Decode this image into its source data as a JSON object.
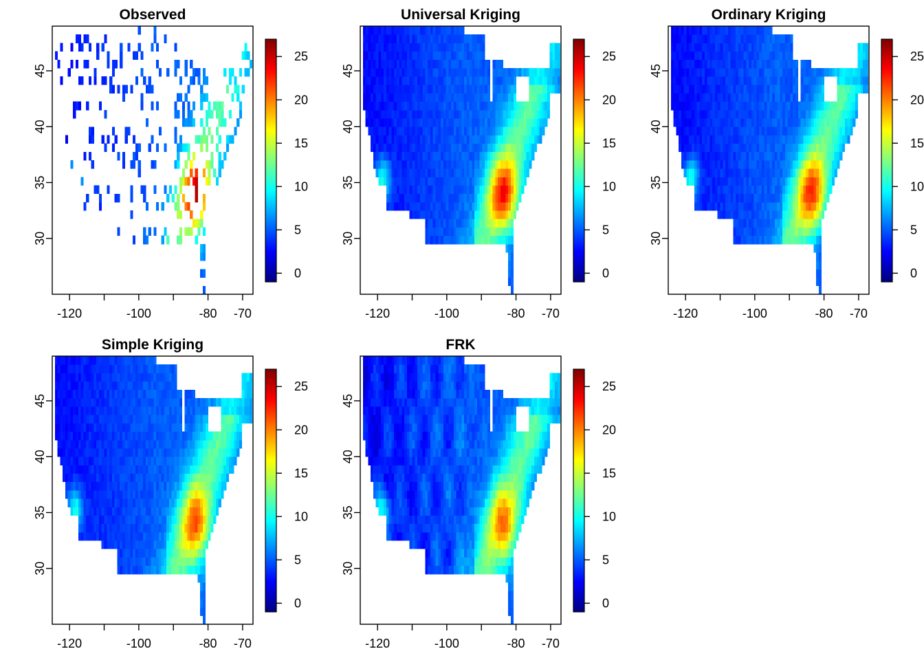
{
  "chart_data": [
    {
      "type": "heatmap",
      "title": "Observed",
      "xlabel": "",
      "ylabel": "",
      "x_ticks": [
        -120,
        -100,
        -80,
        -70
      ],
      "y_ticks": [
        30,
        35,
        40,
        45
      ],
      "xlim": [
        -125,
        -67
      ],
      "ylim": [
        25,
        49
      ],
      "colorbar_ticks": [
        0,
        5,
        10,
        15,
        20,
        25
      ],
      "colorbar_range": [
        -1,
        27
      ],
      "field": "sparse observed station values over the contiguous United States; mostly 2–8 in the west and north, 8–16 in the east, peaking near 22–25 around (-84, 34)",
      "hotspot": {
        "lon": -83.5,
        "lat": 34.0,
        "value": 24
      }
    },
    {
      "type": "heatmap",
      "title": "Universal Kriging",
      "xlabel": "",
      "ylabel": "",
      "x_ticks": [
        -120,
        -100,
        -80,
        -70
      ],
      "y_ticks": [
        30,
        35,
        40,
        45
      ],
      "xlim": [
        -125,
        -67
      ],
      "ylim": [
        25,
        49
      ],
      "colorbar_ticks": [
        0,
        5,
        10,
        15,
        20,
        25
      ],
      "colorbar_range": [
        -1,
        27
      ],
      "field": "smooth interpolated surface, 2–6 over the interior west, 8–14 along the east coast and southern California, peak ≈ 22 near (-84, 34)",
      "hotspot": {
        "lon": -83.5,
        "lat": 34.0,
        "value": 22
      }
    },
    {
      "type": "heatmap",
      "title": "Ordinary Kriging",
      "xlabel": "",
      "ylabel": "",
      "x_ticks": [
        -120,
        -100,
        -80,
        -70
      ],
      "y_ticks": [
        30,
        35,
        40,
        45
      ],
      "xlim": [
        -125,
        -67
      ],
      "ylim": [
        25,
        49
      ],
      "colorbar_ticks": [
        0,
        5,
        10,
        15,
        20,
        25
      ],
      "colorbar_range": [
        -1,
        27
      ],
      "field": "smooth interpolated surface similar to universal kriging, peak ≈ 21 near (-84, 34)",
      "hotspot": {
        "lon": -83.5,
        "lat": 34.0,
        "value": 21
      }
    },
    {
      "type": "heatmap",
      "title": "Simple Kriging",
      "xlabel": "",
      "ylabel": "",
      "x_ticks": [
        -120,
        -100,
        -80,
        -70
      ],
      "y_ticks": [
        30,
        35,
        40,
        45
      ],
      "xlim": [
        -125,
        -67
      ],
      "ylim": [
        25,
        49
      ],
      "colorbar_ticks": [
        0,
        5,
        10,
        15,
        20,
        25
      ],
      "colorbar_range": [
        -1,
        27
      ],
      "field": "smooth interpolated surface, peak ≈ 20 near (-84, 34)",
      "hotspot": {
        "lon": -83.5,
        "lat": 34.0,
        "value": 20
      }
    },
    {
      "type": "heatmap",
      "title": "FRK",
      "xlabel": "",
      "ylabel": "",
      "x_ticks": [
        -120,
        -100,
        -80,
        -70
      ],
      "y_ticks": [
        30,
        35,
        40,
        45
      ],
      "xlim": [
        -125,
        -67
      ],
      "ylim": [
        25,
        49
      ],
      "colorbar_ticks": [
        0,
        5,
        10,
        15,
        20,
        25
      ],
      "colorbar_range": [
        -1,
        27
      ],
      "field": "fixed rank kriging surface with more banded structure in the west, peak ≈ 19 near (-84, 34)",
      "hotspot": {
        "lon": -83.5,
        "lat": 34.0,
        "value": 19
      }
    }
  ]
}
